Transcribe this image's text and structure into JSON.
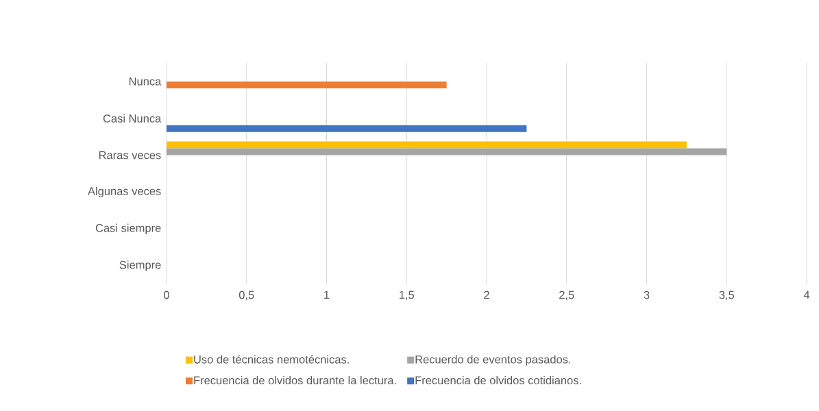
{
  "chart_data": {
    "type": "bar",
    "orientation": "horizontal",
    "categories": [
      "Nunca",
      "Casi Nunca",
      "Raras veces",
      "Algunas veces",
      "Casi siempre",
      "Siempre"
    ],
    "series": [
      {
        "name": "Uso de técnicas nemotécnicas.",
        "color": "#ffc000",
        "values": [
          null,
          null,
          3.25,
          null,
          null,
          null
        ]
      },
      {
        "name": "Recuerdo de eventos pasados.",
        "color": "#a5a5a5",
        "values": [
          null,
          null,
          3.5,
          null,
          null,
          null
        ]
      },
      {
        "name": "Frecuencia de olvidos durante la lectura.",
        "color": "#ed7d31",
        "values": [
          1.75,
          null,
          null,
          null,
          null,
          null
        ]
      },
      {
        "name": "Frecuencia de olvidos cotidianos.",
        "color": "#4472c4",
        "values": [
          null,
          2.25,
          null,
          null,
          null,
          null
        ]
      }
    ],
    "xlim": [
      0,
      4
    ],
    "xticks": [
      0,
      {
        "value": 0.5,
        "label": "0,5"
      },
      1,
      {
        "value": 1.5,
        "label": "1,5"
      },
      2,
      {
        "value": 2.5,
        "label": "2,5"
      },
      3,
      {
        "value": 3.5,
        "label": "3,5"
      },
      4
    ],
    "grid": "x",
    "legend": "bottom"
  }
}
